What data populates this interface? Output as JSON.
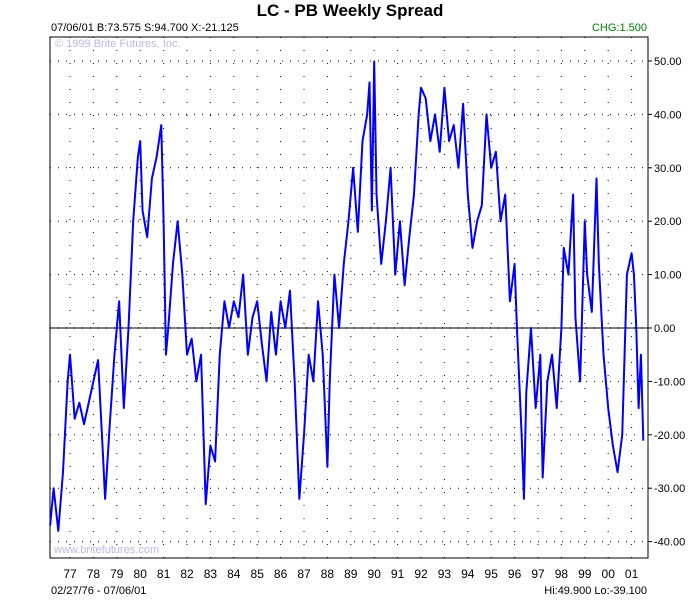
{
  "chart_data": {
    "type": "line",
    "title": "LC - PB Weekly Spread",
    "info": "07/06/01 B:73.575 S:94.700 X:-21.125",
    "change": "CHG:1.500",
    "change_color": "#008000",
    "copyright": "© 1999 Brite Futures, Inc.",
    "website": "www.britefutures.com",
    "date_range": "02/27/76 - 07/06/01",
    "hilo": "Hi:49.900 Lo:-39.100",
    "line_color": "#0000ff",
    "ylim": [
      -44,
      52
    ],
    "xlim": [
      1976.15,
      2001.6
    ],
    "y_ticks": [
      "50.00",
      "40.00",
      "30.00",
      "20.00",
      "10.00",
      "0.00",
      "-10.00",
      "-20.00",
      "-30.00",
      "-40.00"
    ],
    "x_ticks": [
      "77",
      "78",
      "79",
      "80",
      "81",
      "82",
      "83",
      "84",
      "85",
      "86",
      "87",
      "88",
      "89",
      "90",
      "91",
      "92",
      "93",
      "94",
      "95",
      "96",
      "97",
      "98",
      "99",
      "00",
      "01"
    ],
    "grid": true,
    "series": [
      {
        "name": "LC - PB spread",
        "x": [
          1976.15,
          1976.3,
          1976.5,
          1976.7,
          1976.9,
          1977.0,
          1977.2,
          1977.4,
          1977.6,
          1977.8,
          1978.0,
          1978.2,
          1978.4,
          1978.5,
          1978.7,
          1978.9,
          1979.1,
          1979.3,
          1979.5,
          1979.7,
          1979.9,
          1980.0,
          1980.1,
          1980.3,
          1980.5,
          1980.7,
          1980.9,
          1981.0,
          1981.1,
          1981.2,
          1981.4,
          1981.6,
          1981.8,
          1982.0,
          1982.2,
          1982.4,
          1982.6,
          1982.8,
          1983.0,
          1983.2,
          1983.4,
          1983.6,
          1983.8,
          1984.0,
          1984.2,
          1984.4,
          1984.6,
          1984.8,
          1985.0,
          1985.2,
          1985.4,
          1985.6,
          1985.8,
          1986.0,
          1986.2,
          1986.4,
          1986.6,
          1986.8,
          1987.0,
          1987.2,
          1987.4,
          1987.6,
          1987.8,
          1988.0,
          1988.1,
          1988.3,
          1988.5,
          1988.7,
          1988.9,
          1989.1,
          1989.3,
          1989.5,
          1989.7,
          1989.8,
          1989.9,
          1990.0,
          1990.1,
          1990.3,
          1990.5,
          1990.7,
          1990.9,
          1991.1,
          1991.3,
          1991.5,
          1991.7,
          1991.9,
          1992.0,
          1992.2,
          1992.4,
          1992.6,
          1992.8,
          1993.0,
          1993.2,
          1993.4,
          1993.6,
          1993.8,
          1994.0,
          1994.2,
          1994.4,
          1994.6,
          1994.8,
          1995.0,
          1995.2,
          1995.4,
          1995.6,
          1995.8,
          1996.0,
          1996.1,
          1996.3,
          1996.4,
          1996.5,
          1996.7,
          1996.9,
          1997.1,
          1997.2,
          1997.4,
          1997.6,
          1997.8,
          1998.0,
          1998.1,
          1998.3,
          1998.5,
          1998.6,
          1998.8,
          1999.0,
          1999.1,
          1999.3,
          1999.5,
          1999.6,
          1999.8,
          2000.0,
          2000.2,
          2000.4,
          2000.6,
          2000.8,
          2001.0,
          2001.1,
          2001.2,
          2001.3,
          2001.4,
          2001.5
        ],
        "y": [
          -37,
          -30,
          -38,
          -27,
          -10,
          -5,
          -17,
          -14,
          -18,
          -14,
          -10,
          -6,
          -23,
          -32,
          -18,
          -5,
          5,
          -15,
          0,
          20,
          32,
          35,
          22,
          17,
          28,
          32,
          38,
          20,
          -5,
          0,
          12,
          20,
          10,
          -5,
          -2,
          -10,
          -5,
          -33,
          -22,
          -25,
          -5,
          5,
          0,
          5,
          2,
          10,
          -5,
          2,
          5,
          -3,
          -10,
          3,
          -5,
          5,
          0,
          7,
          -10,
          -32,
          -20,
          -5,
          -10,
          5,
          -5,
          -26,
          -10,
          10,
          0,
          12,
          20,
          30,
          18,
          35,
          40,
          46,
          22,
          49.9,
          25,
          12,
          20,
          30,
          10,
          20,
          8,
          17,
          25,
          40,
          45,
          43,
          35,
          40,
          33,
          45,
          35,
          38,
          30,
          42,
          25,
          15,
          20,
          23,
          40,
          30,
          33,
          20,
          25,
          5,
          12,
          0,
          -20,
          -32,
          -12,
          0,
          -15,
          -5,
          -28,
          -10,
          -5,
          -15,
          0,
          15,
          10,
          25,
          2,
          -10,
          20,
          10,
          3,
          28,
          12,
          -5,
          -15,
          -22,
          -27,
          -20,
          10,
          14,
          10,
          0,
          -15,
          -5,
          -21.1
        ]
      }
    ]
  }
}
